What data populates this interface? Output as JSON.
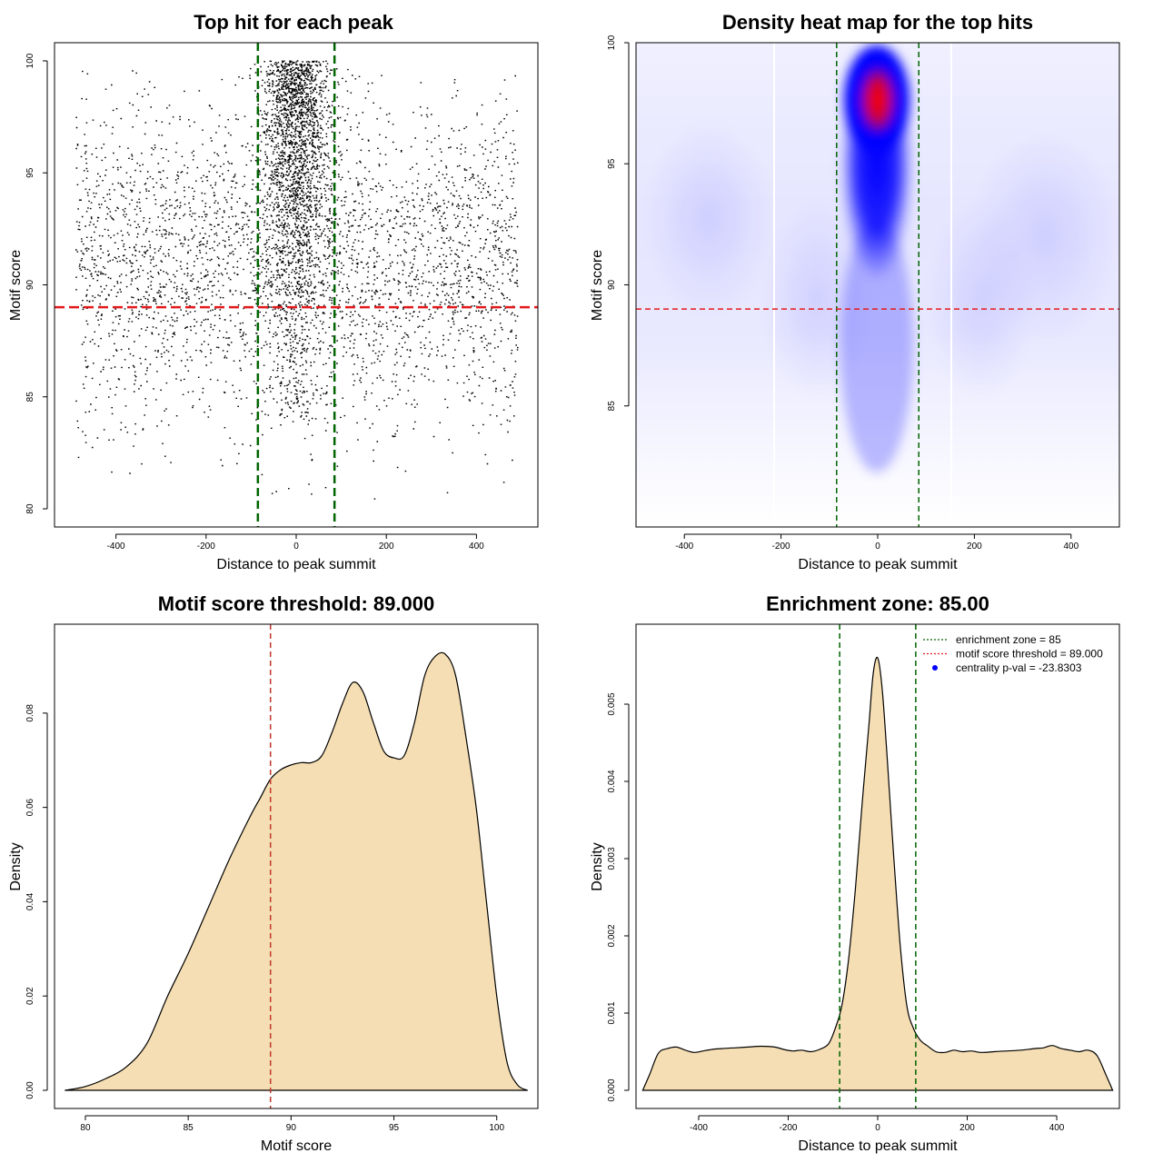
{
  "chart_data": [
    {
      "id": "scatter",
      "type": "scatter",
      "title": "Top hit for each peak",
      "xlabel": "Distance to peak summit",
      "ylabel": "Motif score",
      "xlim": [
        -500,
        500
      ],
      "ylim": [
        80,
        100
      ],
      "xticks": [
        -400,
        -200,
        0,
        200,
        400
      ],
      "yticks": [
        80,
        85,
        90,
        95,
        100
      ],
      "threshold_y": 89.0,
      "zone_x": [
        -85,
        85
      ],
      "threshold_color": "#e31a1c",
      "zone_color": "#006400",
      "point_color": "#000000",
      "point_generation": {
        "n_background": 3400,
        "n_central": 2200,
        "seed": 7
      }
    },
    {
      "id": "heatmap",
      "type": "heatmap",
      "title": "Density heat map for the top hits",
      "xlabel": "Distance to peak summit",
      "ylabel": "Motif score",
      "xlim": [
        -500,
        500
      ],
      "ylim": [
        80,
        100
      ],
      "xticks": [
        -400,
        -200,
        0,
        200,
        400
      ],
      "yticks": [
        85,
        90,
        95,
        100
      ],
      "threshold_y": 89.0,
      "zone_x": [
        -85,
        85
      ],
      "colors": [
        "#ffffff",
        "#0000ff",
        "#ff0000"
      ],
      "hotspot": {
        "x": 0,
        "y": 98
      }
    },
    {
      "id": "score_density",
      "type": "area",
      "title": "Motif score threshold: 89.000",
      "xlabel": "Motif score",
      "ylabel": "Density",
      "xlim": [
        78.5,
        102
      ],
      "ylim": [
        0,
        0.095
      ],
      "xticks": [
        80,
        85,
        90,
        95,
        100
      ],
      "yticks": [
        0.0,
        0.02,
        0.04,
        0.06,
        0.08
      ],
      "ytick_labels": [
        "0.00",
        "0.02",
        "0.04",
        "0.06",
        "0.08"
      ],
      "threshold_x": 89.0,
      "fill_color": "#f5deb3",
      "x": [
        79,
        80,
        81,
        82,
        83,
        84,
        85,
        86,
        87,
        88,
        88.5,
        89,
        89.5,
        90,
        90.5,
        91,
        91.5,
        92,
        92.5,
        93,
        93.5,
        94,
        94.5,
        95,
        95.5,
        96,
        96.5,
        97,
        97.5,
        98,
        98.5,
        99,
        99.5,
        100,
        100.5,
        101,
        101.5
      ],
      "y": [
        0.0,
        0.0008,
        0.0025,
        0.005,
        0.01,
        0.02,
        0.029,
        0.039,
        0.049,
        0.058,
        0.062,
        0.066,
        0.068,
        0.069,
        0.0695,
        0.0695,
        0.071,
        0.076,
        0.082,
        0.0865,
        0.0845,
        0.078,
        0.072,
        0.0705,
        0.071,
        0.078,
        0.088,
        0.092,
        0.0925,
        0.088,
        0.075,
        0.06,
        0.04,
        0.02,
        0.006,
        0.0012,
        0.0
      ]
    },
    {
      "id": "distance_density",
      "type": "area",
      "title": "Enrichment zone: 85.00",
      "xlabel": "Distance to peak summit",
      "ylabel": "Density",
      "xlim": [
        -540,
        540
      ],
      "ylim": [
        0,
        0.0058
      ],
      "xticks": [
        -400,
        -200,
        0,
        200,
        400
      ],
      "yticks": [
        0.0,
        0.001,
        0.002,
        0.003,
        0.004,
        0.005
      ],
      "ytick_labels": [
        "0.000",
        "0.001",
        "0.002",
        "0.003",
        "0.004",
        "0.005"
      ],
      "zone_x": [
        -85,
        85
      ],
      "fill_color": "#f5deb3",
      "x": [
        -525,
        -510,
        -490,
        -470,
        -450,
        -430,
        -410,
        -390,
        -370,
        -350,
        -320,
        -290,
        -260,
        -230,
        -210,
        -190,
        -170,
        -150,
        -130,
        -110,
        -95,
        -80,
        -65,
        -50,
        -35,
        -20,
        -10,
        0,
        10,
        20,
        35,
        50,
        65,
        80,
        95,
        110,
        130,
        150,
        170,
        190,
        210,
        230,
        260,
        290,
        320,
        350,
        370,
        390,
        410,
        430,
        450,
        470,
        490,
        510,
        525
      ],
      "y": [
        0.0,
        0.0002,
        0.00048,
        0.00054,
        0.00056,
        0.00052,
        0.00049,
        0.00051,
        0.00053,
        0.00054,
        0.00055,
        0.00056,
        0.00057,
        0.00056,
        0.00053,
        0.00051,
        0.00052,
        0.0005,
        0.00053,
        0.0006,
        0.0008,
        0.0011,
        0.0017,
        0.0026,
        0.0037,
        0.0047,
        0.0054,
        0.0056,
        0.0052,
        0.0044,
        0.0031,
        0.0019,
        0.0011,
        0.0008,
        0.00065,
        0.00058,
        0.0005,
        0.00049,
        0.00052,
        0.0005,
        0.00051,
        0.00049,
        0.0005,
        0.00051,
        0.00052,
        0.00054,
        0.00055,
        0.00058,
        0.00054,
        0.00052,
        0.0005,
        0.00052,
        0.00045,
        0.0002,
        0.0
      ],
      "legend": {
        "placement": "top-right",
        "entries": [
          {
            "label": "enrichment zone = 85",
            "color": "#006400",
            "style": "dotted-line"
          },
          {
            "label": "motif score threshold = 89.000",
            "color": "#e31a1c",
            "style": "dotted-line"
          },
          {
            "label": "centrality p-val = -23.8303",
            "color": "#0000ff",
            "style": "dot"
          }
        ]
      }
    }
  ]
}
